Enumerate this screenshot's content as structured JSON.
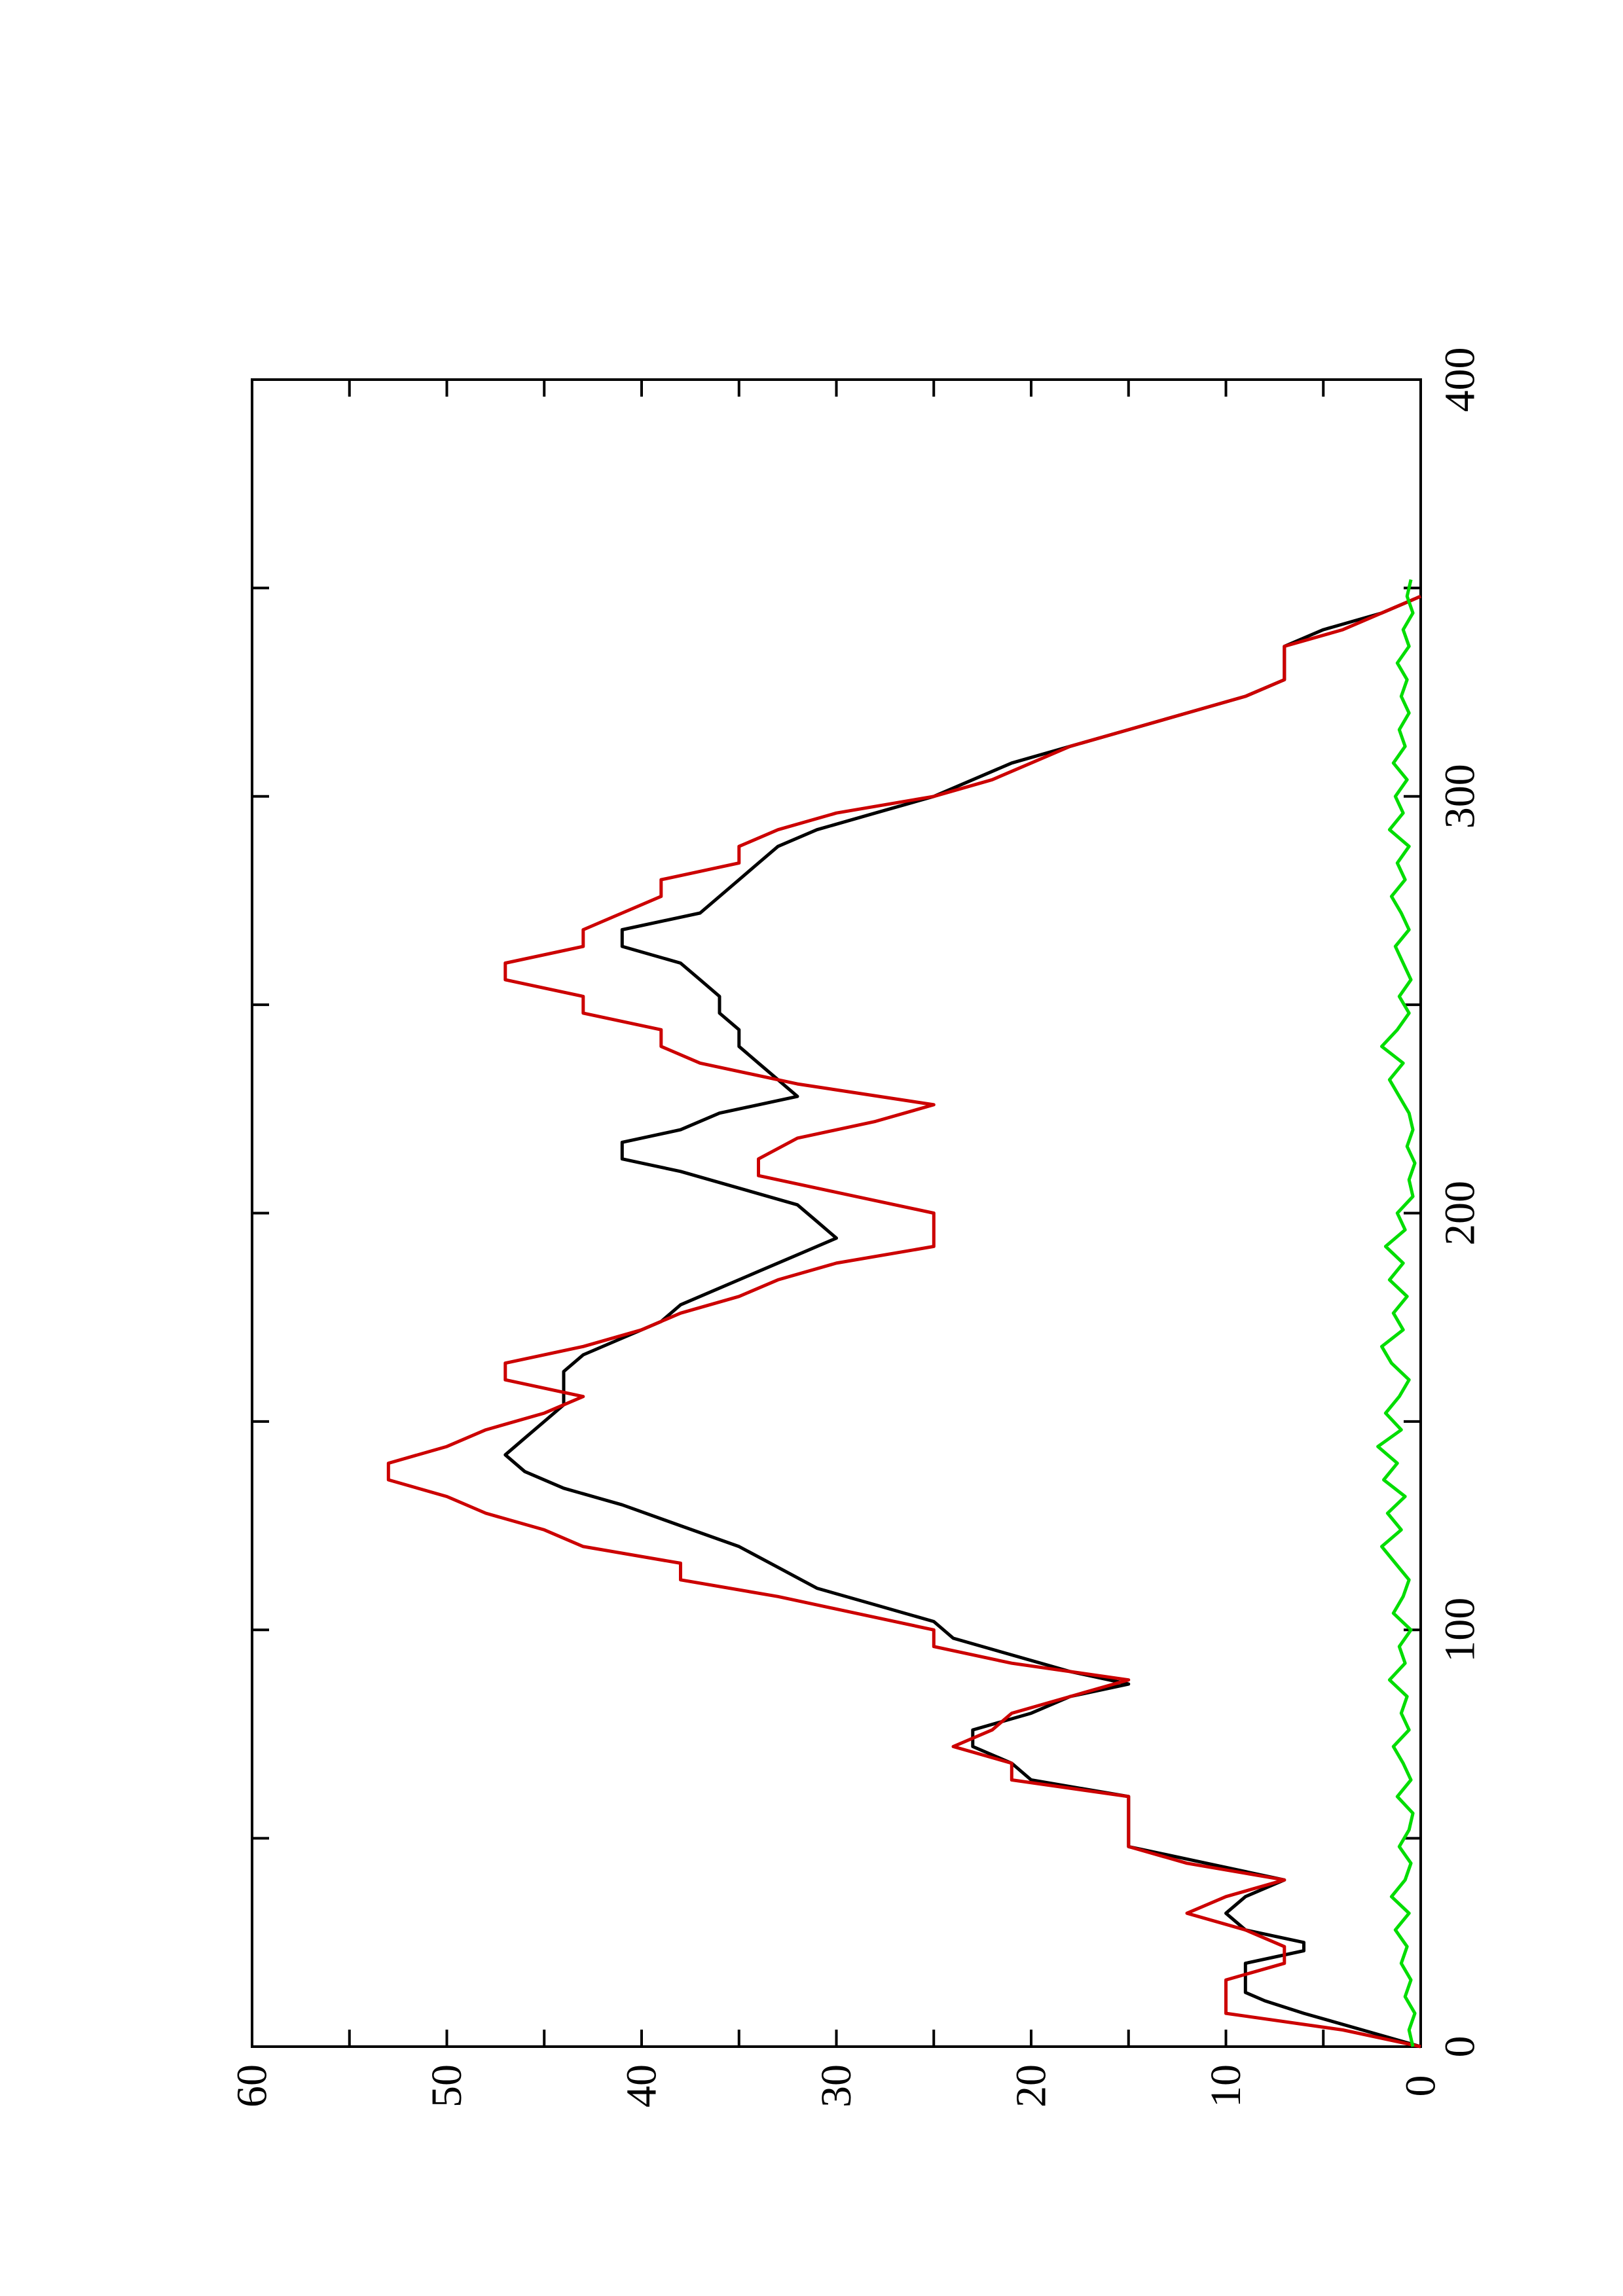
{
  "chart_data": {
    "type": "line",
    "title": "",
    "xlabel": "",
    "ylabel": "",
    "xlim": [
      0,
      400
    ],
    "ylim": [
      0,
      60
    ],
    "x_ticks": [
      0,
      100,
      200,
      300,
      400
    ],
    "x_minor_ticks": [
      50,
      150,
      250,
      350
    ],
    "y_ticks": [
      0,
      10,
      20,
      30,
      40,
      50,
      60
    ],
    "y_minor_ticks": [
      5,
      15,
      25,
      35,
      45,
      55
    ],
    "x_tick_labels": [
      "0",
      "100",
      "200",
      "300",
      "400"
    ],
    "y_tick_labels": [
      "0",
      "10",
      "20",
      "30",
      "40",
      "50",
      "60"
    ],
    "grid": false,
    "legend": "none",
    "orientation": "rotated-90-ccw",
    "series": [
      {
        "color": "#000000",
        "points": [
          [
            0,
            0
          ],
          [
            4,
            3
          ],
          [
            8,
            6
          ],
          [
            11,
            8
          ],
          [
            13,
            9
          ],
          [
            16,
            9
          ],
          [
            20,
            9
          ],
          [
            23,
            6
          ],
          [
            25,
            6
          ],
          [
            28,
            9
          ],
          [
            32,
            10
          ],
          [
            36,
            9
          ],
          [
            40,
            7
          ],
          [
            44,
            11
          ],
          [
            48,
            15
          ],
          [
            52,
            15
          ],
          [
            56,
            15
          ],
          [
            60,
            15
          ],
          [
            64,
            20
          ],
          [
            68,
            21
          ],
          [
            72,
            23
          ],
          [
            76,
            23
          ],
          [
            80,
            20
          ],
          [
            84,
            18
          ],
          [
            87,
            15
          ],
          [
            90,
            18
          ],
          [
            94,
            21
          ],
          [
            98,
            24
          ],
          [
            102,
            25
          ],
          [
            106,
            28
          ],
          [
            110,
            31
          ],
          [
            115,
            33
          ],
          [
            120,
            35
          ],
          [
            125,
            38
          ],
          [
            130,
            41
          ],
          [
            134,
            44
          ],
          [
            138,
            46
          ],
          [
            142,
            47
          ],
          [
            146,
            46
          ],
          [
            150,
            45
          ],
          [
            154,
            44
          ],
          [
            158,
            44
          ],
          [
            162,
            44
          ],
          [
            166,
            43
          ],
          [
            170,
            41
          ],
          [
            174,
            39
          ],
          [
            178,
            38
          ],
          [
            182,
            36
          ],
          [
            186,
            34
          ],
          [
            190,
            32
          ],
          [
            194,
            30
          ],
          [
            198,
            31
          ],
          [
            202,
            32
          ],
          [
            206,
            35
          ],
          [
            210,
            38
          ],
          [
            213,
            41
          ],
          [
            217,
            41
          ],
          [
            220,
            38
          ],
          [
            224,
            36
          ],
          [
            228,
            32
          ],
          [
            232,
            33
          ],
          [
            236,
            34
          ],
          [
            240,
            35
          ],
          [
            244,
            35
          ],
          [
            248,
            36
          ],
          [
            252,
            36
          ],
          [
            256,
            37
          ],
          [
            260,
            38
          ],
          [
            264,
            41
          ],
          [
            268,
            41
          ],
          [
            272,
            37
          ],
          [
            276,
            36
          ],
          [
            280,
            35
          ],
          [
            284,
            34
          ],
          [
            288,
            33
          ],
          [
            292,
            31
          ],
          [
            296,
            28
          ],
          [
            300,
            25
          ],
          [
            304,
            23
          ],
          [
            308,
            21
          ],
          [
            312,
            18
          ],
          [
            316,
            15
          ],
          [
            320,
            12
          ],
          [
            324,
            9
          ],
          [
            328,
            7
          ],
          [
            332,
            7
          ],
          [
            336,
            7
          ],
          [
            340,
            5
          ],
          [
            344,
            2
          ],
          [
            348,
            0
          ]
        ]
      },
      {
        "color": "#cc0000",
        "points": [
          [
            0,
            0
          ],
          [
            4,
            4
          ],
          [
            8,
            10
          ],
          [
            12,
            10
          ],
          [
            16,
            10
          ],
          [
            20,
            7
          ],
          [
            24,
            7
          ],
          [
            28,
            9
          ],
          [
            32,
            12
          ],
          [
            36,
            10
          ],
          [
            40,
            7
          ],
          [
            44,
            12
          ],
          [
            48,
            15
          ],
          [
            52,
            15
          ],
          [
            56,
            15
          ],
          [
            60,
            15
          ],
          [
            64,
            21
          ],
          [
            68,
            21
          ],
          [
            72,
            24
          ],
          [
            76,
            22
          ],
          [
            80,
            21
          ],
          [
            84,
            18
          ],
          [
            88,
            15
          ],
          [
            92,
            21
          ],
          [
            96,
            25
          ],
          [
            100,
            25
          ],
          [
            104,
            29
          ],
          [
            108,
            33
          ],
          [
            112,
            38
          ],
          [
            116,
            38
          ],
          [
            120,
            43
          ],
          [
            124,
            45
          ],
          [
            128,
            48
          ],
          [
            132,
            50
          ],
          [
            136,
            53
          ],
          [
            140,
            53
          ],
          [
            144,
            50
          ],
          [
            148,
            48
          ],
          [
            152,
            45
          ],
          [
            156,
            43
          ],
          [
            160,
            47
          ],
          [
            164,
            47
          ],
          [
            168,
            43
          ],
          [
            172,
            40
          ],
          [
            176,
            38
          ],
          [
            180,
            35
          ],
          [
            184,
            33
          ],
          [
            188,
            30
          ],
          [
            192,
            25
          ],
          [
            196,
            25
          ],
          [
            200,
            25
          ],
          [
            205,
            30
          ],
          [
            209,
            34
          ],
          [
            213,
            34
          ],
          [
            218,
            32
          ],
          [
            222,
            28
          ],
          [
            226,
            25
          ],
          [
            231,
            32
          ],
          [
            236,
            37
          ],
          [
            240,
            39
          ],
          [
            244,
            39
          ],
          [
            248,
            43
          ],
          [
            252,
            43
          ],
          [
            256,
            47
          ],
          [
            260,
            47
          ],
          [
            264,
            43
          ],
          [
            268,
            43
          ],
          [
            272,
            41
          ],
          [
            276,
            39
          ],
          [
            280,
            39
          ],
          [
            284,
            35
          ],
          [
            288,
            35
          ],
          [
            292,
            33
          ],
          [
            296,
            30
          ],
          [
            300,
            25
          ],
          [
            304,
            22
          ],
          [
            308,
            20
          ],
          [
            312,
            18
          ],
          [
            316,
            15
          ],
          [
            320,
            12
          ],
          [
            324,
            9
          ],
          [
            328,
            7
          ],
          [
            332,
            7
          ],
          [
            336,
            7
          ],
          [
            340,
            4
          ],
          [
            344,
            2
          ],
          [
            348,
            0
          ]
        ]
      },
      {
        "color": "#00dd00",
        "points": [
          [
            0,
            0.4
          ],
          [
            4,
            0.6
          ],
          [
            8,
            0.3
          ],
          [
            12,
            0.8
          ],
          [
            16,
            0.5
          ],
          [
            20,
            1.0
          ],
          [
            24,
            0.7
          ],
          [
            28,
            1.3
          ],
          [
            32,
            0.6
          ],
          [
            36,
            1.5
          ],
          [
            40,
            0.8
          ],
          [
            44,
            0.5
          ],
          [
            48,
            1.1
          ],
          [
            52,
            0.6
          ],
          [
            56,
            0.4
          ],
          [
            60,
            1.2
          ],
          [
            64,
            0.5
          ],
          [
            68,
            0.9
          ],
          [
            72,
            1.4
          ],
          [
            76,
            0.6
          ],
          [
            80,
            1.0
          ],
          [
            84,
            0.7
          ],
          [
            88,
            1.6
          ],
          [
            92,
            0.8
          ],
          [
            96,
            1.1
          ],
          [
            100,
            0.5
          ],
          [
            104,
            1.4
          ],
          [
            108,
            0.9
          ],
          [
            112,
            0.6
          ],
          [
            116,
            1.3
          ],
          [
            120,
            2.0
          ],
          [
            124,
            1.0
          ],
          [
            128,
            1.7
          ],
          [
            132,
            0.8
          ],
          [
            136,
            1.9
          ],
          [
            140,
            1.2
          ],
          [
            144,
            2.2
          ],
          [
            148,
            1.0
          ],
          [
            152,
            1.8
          ],
          [
            156,
            1.1
          ],
          [
            160,
            0.6
          ],
          [
            164,
            1.5
          ],
          [
            168,
            2.0
          ],
          [
            172,
            0.9
          ],
          [
            176,
            1.4
          ],
          [
            180,
            0.7
          ],
          [
            184,
            1.6
          ],
          [
            188,
            0.9
          ],
          [
            192,
            1.8
          ],
          [
            196,
            0.8
          ],
          [
            200,
            1.2
          ],
          [
            204,
            0.4
          ],
          [
            208,
            0.6
          ],
          [
            212,
            0.3
          ],
          [
            216,
            0.7
          ],
          [
            220,
            0.4
          ],
          [
            224,
            0.6
          ],
          [
            228,
            1.1
          ],
          [
            232,
            1.6
          ],
          [
            236,
            0.9
          ],
          [
            240,
            2.0
          ],
          [
            244,
            1.2
          ],
          [
            248,
            0.6
          ],
          [
            252,
            1.1
          ],
          [
            256,
            0.5
          ],
          [
            260,
            0.9
          ],
          [
            264,
            1.3
          ],
          [
            268,
            0.6
          ],
          [
            272,
            1.0
          ],
          [
            276,
            1.5
          ],
          [
            280,
            0.8
          ],
          [
            284,
            1.2
          ],
          [
            288,
            0.6
          ],
          [
            292,
            1.6
          ],
          [
            296,
            0.9
          ],
          [
            300,
            1.3
          ],
          [
            304,
            0.7
          ],
          [
            308,
            1.4
          ],
          [
            312,
            0.8
          ],
          [
            316,
            1.1
          ],
          [
            320,
            0.6
          ],
          [
            324,
            1.0
          ],
          [
            328,
            0.7
          ],
          [
            332,
            1.2
          ],
          [
            336,
            0.6
          ],
          [
            340,
            0.9
          ],
          [
            344,
            0.4
          ],
          [
            348,
            0.7
          ],
          [
            352,
            0.5
          ]
        ]
      }
    ]
  }
}
